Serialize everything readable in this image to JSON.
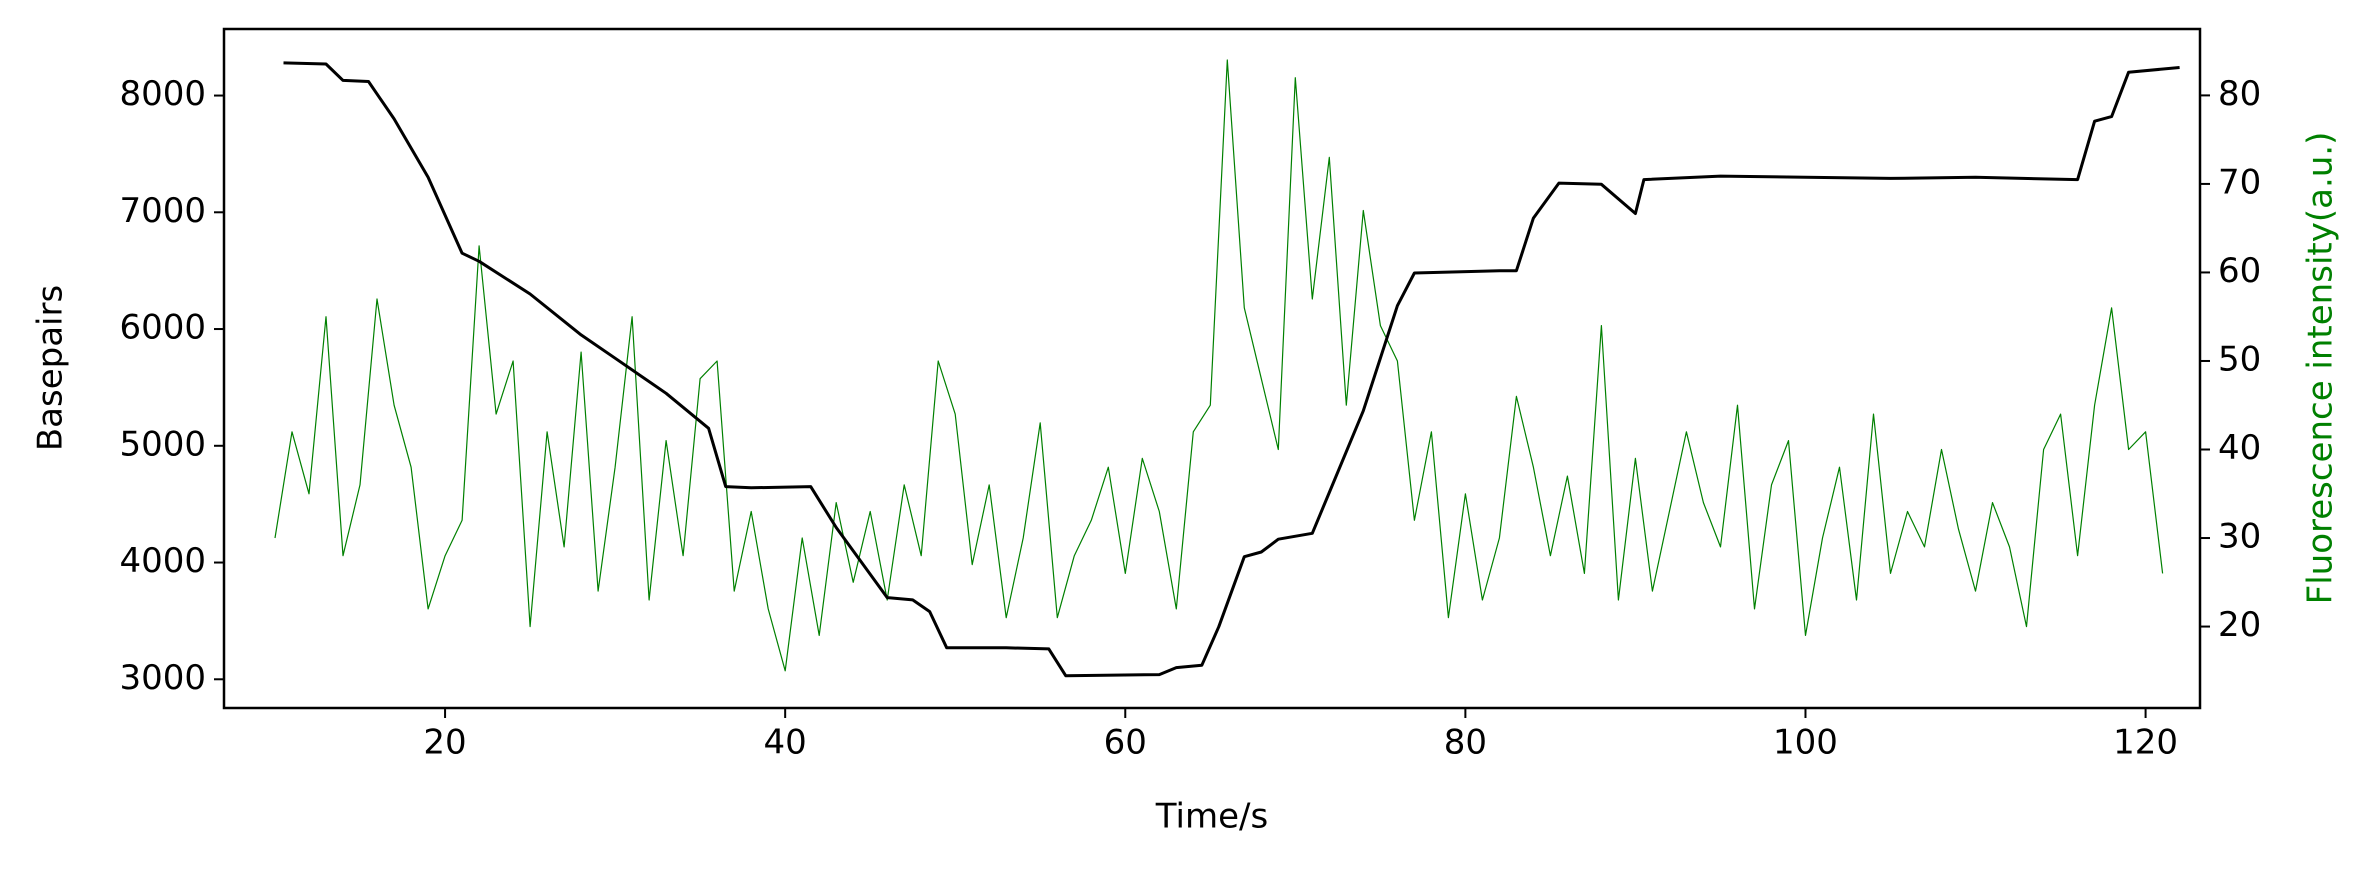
{
  "chart_data": {
    "type": "line",
    "x_label": "Time/s",
    "y_label": "Basepairs",
    "y2_label": "Fluorescence intensity(a.u.)",
    "y2_label_color": "#008000",
    "xlim": [
      7.0,
      123.2
    ],
    "xticks": [
      20,
      40,
      60,
      80,
      100,
      120
    ],
    "ylim": [
      2754,
      8570
    ],
    "yticks": [
      3000,
      4000,
      5000,
      6000,
      7000,
      8000
    ],
    "y2lim": [
      10.8,
      87.5
    ],
    "y2ticks": [
      20,
      30,
      40,
      50,
      60,
      70,
      80
    ],
    "grid": false,
    "series": [
      {
        "color": "#000000",
        "width": 3,
        "x": [
          10.5,
          13,
          14,
          15.5,
          17,
          19,
          21,
          22,
          25,
          28,
          30,
          33,
          35.5,
          36.5,
          38,
          41.5,
          43,
          45,
          46,
          47.5,
          48.5,
          49.5,
          53,
          55.5,
          56.5,
          62,
          63,
          64.5,
          65.5,
          67,
          68,
          69,
          71,
          72,
          74,
          76,
          77,
          82,
          83,
          84,
          85.5,
          88,
          90,
          90.5,
          95,
          100,
          105,
          110,
          116,
          117,
          118,
          119,
          122
        ],
        "values": [
          8280,
          8270,
          8130,
          8120,
          7800,
          7300,
          6650,
          6580,
          6300,
          5950,
          5750,
          5450,
          5150,
          4650,
          4640,
          4650,
          4300,
          3900,
          3700,
          3680,
          3580,
          3270,
          3270,
          3260,
          3030,
          3040,
          3100,
          3120,
          3450,
          4050,
          4090,
          4200,
          4250,
          4600,
          5300,
          6200,
          6480,
          6500,
          6500,
          6950,
          7250,
          7240,
          6990,
          7280,
          7310,
          7300,
          7290,
          7300,
          7280,
          7780,
          7820,
          8200,
          8240
        ]
      },
      {
        "color": "#008000",
        "width": 1.2,
        "axis": "y2",
        "x": [
          10,
          11,
          12,
          13,
          14,
          15,
          16,
          17,
          18,
          19,
          20,
          21,
          22,
          23,
          24,
          25,
          26,
          27,
          28,
          29,
          30,
          31,
          32,
          33,
          34,
          35,
          36,
          37,
          38,
          39,
          40,
          41,
          42,
          43,
          44,
          45,
          46,
          47,
          48,
          49,
          50,
          51,
          52,
          53,
          54,
          55,
          56,
          57,
          58,
          59,
          60,
          61,
          62,
          63,
          64,
          65,
          66,
          67,
          68,
          69,
          70,
          71,
          72,
          73,
          74,
          75,
          76,
          77,
          78,
          79,
          80,
          81,
          82,
          83,
          84,
          85,
          86,
          87,
          88,
          89,
          90,
          91,
          92,
          93,
          94,
          95,
          96,
          97,
          98,
          99,
          100,
          101,
          102,
          103,
          104,
          105,
          106,
          107,
          108,
          109,
          110,
          111,
          112,
          113,
          114,
          115,
          116,
          117,
          118,
          119,
          120,
          121
        ],
        "values": [
          30,
          42,
          35,
          55,
          28,
          36,
          57,
          45,
          38,
          22,
          28,
          32,
          63,
          44,
          50,
          20,
          42,
          29,
          51,
          24,
          38,
          55,
          23,
          41,
          28,
          48,
          50,
          24,
          33,
          22,
          15,
          30,
          19,
          34,
          25,
          33,
          23,
          36,
          28,
          50,
          44,
          27,
          36,
          21,
          30,
          43,
          21,
          28,
          32,
          38,
          26,
          39,
          33,
          22,
          42,
          45,
          84,
          56,
          48,
          40,
          82,
          57,
          73,
          45,
          67,
          54,
          50,
          32,
          42,
          21,
          35,
          23,
          30,
          46,
          38,
          28,
          37,
          26,
          54,
          23,
          39,
          24,
          33,
          42,
          34,
          29,
          45,
          22,
          36,
          41,
          19,
          30,
          38,
          23,
          44,
          26,
          33,
          29,
          40,
          31,
          24,
          34,
          29,
          20,
          40,
          44,
          28,
          45,
          56,
          40,
          42,
          26
        ]
      }
    ]
  }
}
